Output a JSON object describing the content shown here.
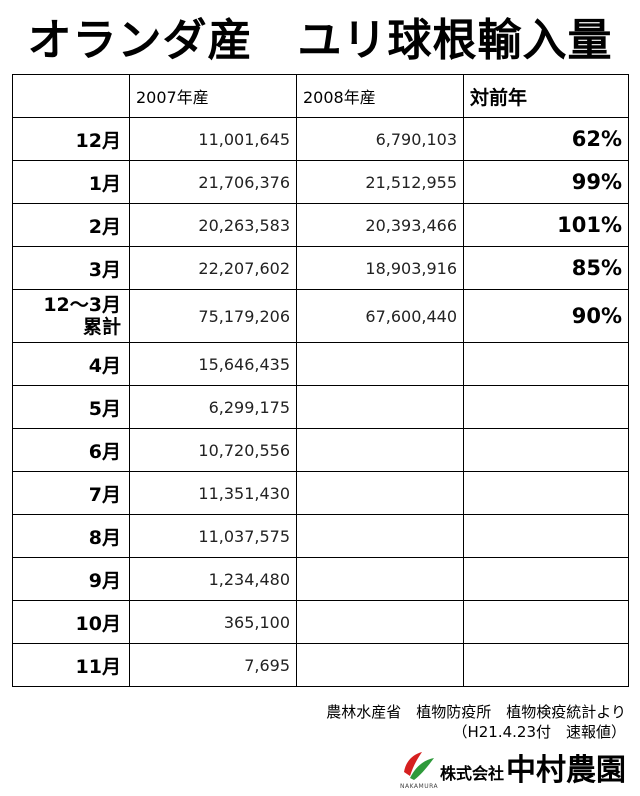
{
  "title": "オランダ産　ユリ球根輸入量",
  "table": {
    "headers": [
      "",
      "2007年産",
      "2008年産",
      "対前年"
    ],
    "rows": [
      {
        "month": "12月",
        "y2007": "11,001,645",
        "y2008": "6,790,103",
        "yoy": "62%"
      },
      {
        "month": "1月",
        "y2007": "21,706,376",
        "y2008": "21,512,955",
        "yoy": "99%"
      },
      {
        "month": "2月",
        "y2007": "20,263,583",
        "y2008": "20,393,466",
        "yoy": "101%"
      },
      {
        "month": "3月",
        "y2007": "22,207,602",
        "y2008": "18,903,916",
        "yoy": "85%"
      },
      {
        "month_line1": "12～3月",
        "month_line2": "累計",
        "y2007": "75,179,206",
        "y2008": "67,600,440",
        "yoy": "90%"
      },
      {
        "month": "4月",
        "y2007": "15,646,435",
        "y2008": "",
        "yoy": ""
      },
      {
        "month": "5月",
        "y2007": "6,299,175",
        "y2008": "",
        "yoy": ""
      },
      {
        "month": "6月",
        "y2007": "10,720,556",
        "y2008": "",
        "yoy": ""
      },
      {
        "month": "7月",
        "y2007": "11,351,430",
        "y2008": "",
        "yoy": ""
      },
      {
        "month": "8月",
        "y2007": "11,037,575",
        "y2008": "",
        "yoy": ""
      },
      {
        "month": "9月",
        "y2007": "1,234,480",
        "y2008": "",
        "yoy": ""
      },
      {
        "month": "10月",
        "y2007": "365,100",
        "y2008": "",
        "yoy": ""
      },
      {
        "month": "11月",
        "y2007": "7,695",
        "y2008": "",
        "yoy": ""
      }
    ]
  },
  "source": {
    "line1": "農林水産省　植物防疫所　植物検疫統計より",
    "line2": "（H21.4.23付　速報値）"
  },
  "logo": {
    "company_prefix": "株式会社",
    "company_name": "中村農園",
    "romaji": "NAKAMURA",
    "mark_colors": [
      "#d62020",
      "#2e9a3a"
    ]
  }
}
